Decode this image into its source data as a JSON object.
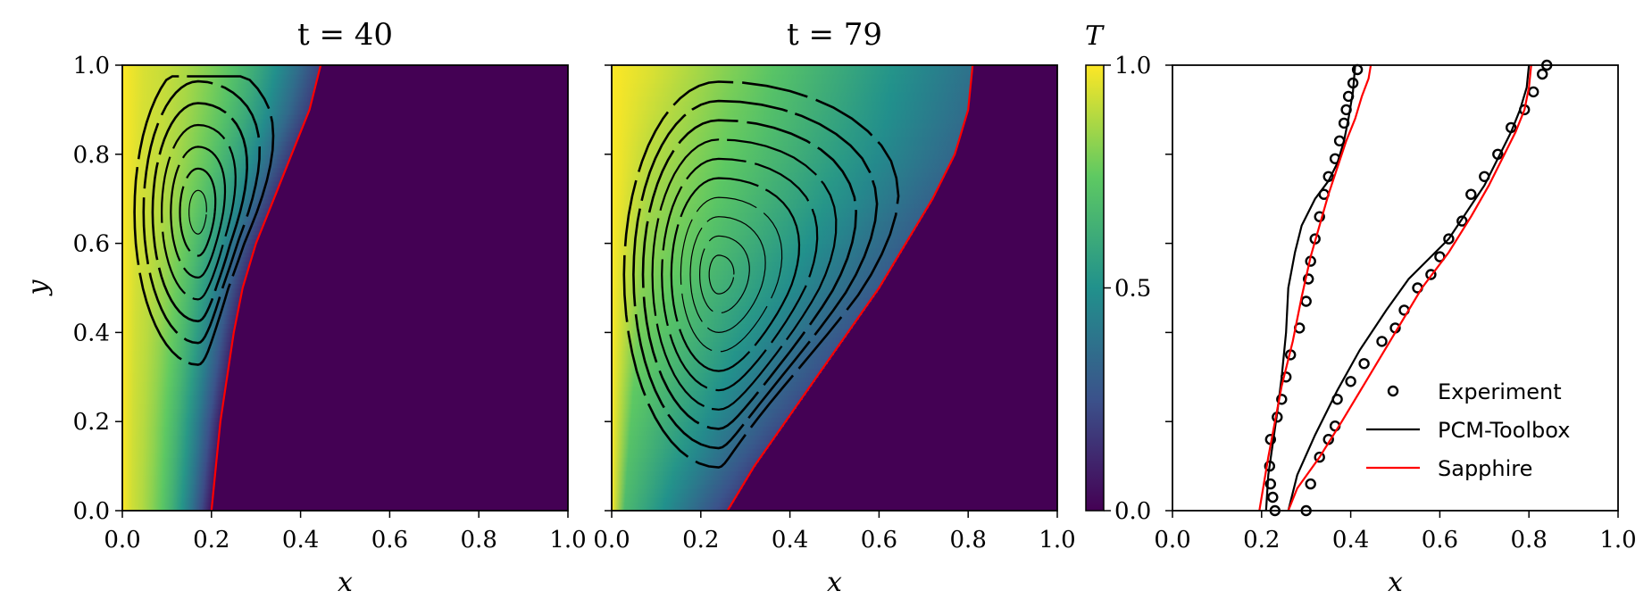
{
  "chart_data": [
    {
      "type": "heatmap",
      "title": "t = 40",
      "xlabel": "x",
      "ylabel": "y",
      "xlim": [
        0,
        1
      ],
      "ylim": [
        0,
        1
      ],
      "x_ticks": [
        "0.0",
        "0.2",
        "0.4",
        "0.6",
        "0.8",
        "1.0"
      ],
      "y_ticks": [
        "0.0",
        "0.2",
        "0.4",
        "0.6",
        "0.8",
        "1.0"
      ],
      "colormap": "viridis",
      "field": "T",
      "melt_front": {
        "y": [
          0.0,
          0.1,
          0.2,
          0.3,
          0.4,
          0.5,
          0.6,
          0.7,
          0.8,
          0.9,
          1.0
        ],
        "x": [
          0.2,
          0.21,
          0.22,
          0.235,
          0.25,
          0.27,
          0.3,
          0.34,
          0.38,
          0.42,
          0.445
        ]
      },
      "vortex_center": [
        0.17,
        0.67
      ]
    },
    {
      "type": "heatmap",
      "title": "t = 79",
      "xlabel": "x",
      "ylabel": "",
      "xlim": [
        0,
        1
      ],
      "ylim": [
        0,
        1
      ],
      "x_ticks": [
        "0.0",
        "0.2",
        "0.4",
        "0.6",
        "0.8",
        "1.0"
      ],
      "colormap": "viridis",
      "field": "T",
      "melt_front": {
        "y": [
          0.0,
          0.1,
          0.2,
          0.3,
          0.4,
          0.5,
          0.6,
          0.7,
          0.8,
          0.9,
          1.0
        ],
        "x": [
          0.26,
          0.32,
          0.39,
          0.46,
          0.53,
          0.6,
          0.66,
          0.72,
          0.77,
          0.8,
          0.81
        ]
      },
      "vortex_center": [
        0.24,
        0.53
      ],
      "colorbar": {
        "label": "T",
        "ticks": [
          "0.0",
          "0.5",
          "1.0"
        ],
        "range": [
          0,
          1
        ]
      }
    },
    {
      "type": "line",
      "xlabel": "x",
      "xlim": [
        0,
        1
      ],
      "ylim": [
        0,
        1
      ],
      "x_ticks": [
        "0.0",
        "0.2",
        "0.4",
        "0.6",
        "0.8",
        "1.0"
      ],
      "legend_position": "lower-right",
      "series": [
        {
          "name": "Experiment",
          "style": "circles",
          "color": "#000000",
          "points": [
            [
              0.23,
              0.0
            ],
            [
              0.225,
              0.03
            ],
            [
              0.22,
              0.06
            ],
            [
              0.218,
              0.1
            ],
            [
              0.22,
              0.16
            ],
            [
              0.235,
              0.21
            ],
            [
              0.245,
              0.25
            ],
            [
              0.255,
              0.3
            ],
            [
              0.265,
              0.35
            ],
            [
              0.285,
              0.41
            ],
            [
              0.3,
              0.47
            ],
            [
              0.305,
              0.52
            ],
            [
              0.31,
              0.56
            ],
            [
              0.32,
              0.61
            ],
            [
              0.33,
              0.66
            ],
            [
              0.34,
              0.71
            ],
            [
              0.35,
              0.75
            ],
            [
              0.365,
              0.79
            ],
            [
              0.375,
              0.83
            ],
            [
              0.385,
              0.87
            ],
            [
              0.39,
              0.9
            ],
            [
              0.395,
              0.93
            ],
            [
              0.405,
              0.96
            ],
            [
              0.415,
              0.99
            ],
            [
              0.3,
              0.0
            ],
            [
              0.31,
              0.06
            ],
            [
              0.33,
              0.12
            ],
            [
              0.35,
              0.16
            ],
            [
              0.365,
              0.19
            ],
            [
              0.37,
              0.25
            ],
            [
              0.4,
              0.29
            ],
            [
              0.43,
              0.33
            ],
            [
              0.47,
              0.38
            ],
            [
              0.5,
              0.41
            ],
            [
              0.52,
              0.45
            ],
            [
              0.55,
              0.5
            ],
            [
              0.58,
              0.53
            ],
            [
              0.6,
              0.57
            ],
            [
              0.62,
              0.61
            ],
            [
              0.65,
              0.65
            ],
            [
              0.67,
              0.71
            ],
            [
              0.7,
              0.75
            ],
            [
              0.73,
              0.8
            ],
            [
              0.76,
              0.86
            ],
            [
              0.79,
              0.9
            ],
            [
              0.81,
              0.94
            ],
            [
              0.83,
              0.98
            ],
            [
              0.84,
              1.0
            ]
          ]
        },
        {
          "name": "PCM-Toolbox",
          "style": "line",
          "color": "#000000",
          "curves": [
            [
              [
                0.21,
                0.0
              ],
              [
                0.215,
                0.08
              ],
              [
                0.225,
                0.15
              ],
              [
                0.235,
                0.22
              ],
              [
                0.245,
                0.3
              ],
              [
                0.255,
                0.4
              ],
              [
                0.26,
                0.5
              ],
              [
                0.275,
                0.58
              ],
              [
                0.29,
                0.64
              ],
              [
                0.32,
                0.7
              ],
              [
                0.35,
                0.74
              ],
              [
                0.37,
                0.78
              ],
              [
                0.385,
                0.83
              ],
              [
                0.395,
                0.88
              ],
              [
                0.405,
                0.94
              ],
              [
                0.41,
                1.0
              ]
            ],
            [
              [
                0.26,
                0.0
              ],
              [
                0.28,
                0.08
              ],
              [
                0.32,
                0.17
              ],
              [
                0.37,
                0.27
              ],
              [
                0.42,
                0.36
              ],
              [
                0.48,
                0.45
              ],
              [
                0.53,
                0.52
              ],
              [
                0.58,
                0.57
              ],
              [
                0.62,
                0.61
              ],
              [
                0.66,
                0.67
              ],
              [
                0.7,
                0.73
              ],
              [
                0.73,
                0.79
              ],
              [
                0.76,
                0.85
              ],
              [
                0.78,
                0.9
              ],
              [
                0.795,
                0.95
              ],
              [
                0.8,
                1.0
              ]
            ]
          ]
        },
        {
          "name": "Sapphire",
          "style": "line",
          "color": "#ff0000",
          "curves": [
            [
              [
                0.195,
                0.0
              ],
              [
                0.205,
                0.06
              ],
              [
                0.215,
                0.12
              ],
              [
                0.23,
                0.2
              ],
              [
                0.245,
                0.28
              ],
              [
                0.27,
                0.38
              ],
              [
                0.29,
                0.48
              ],
              [
                0.31,
                0.57
              ],
              [
                0.33,
                0.64
              ],
              [
                0.35,
                0.71
              ],
              [
                0.37,
                0.77
              ],
              [
                0.39,
                0.83
              ],
              [
                0.41,
                0.88
              ],
              [
                0.425,
                0.93
              ],
              [
                0.44,
                0.97
              ],
              [
                0.445,
                1.0
              ]
            ],
            [
              [
                0.26,
                0.0
              ],
              [
                0.28,
                0.05
              ],
              [
                0.33,
                0.12
              ],
              [
                0.38,
                0.2
              ],
              [
                0.44,
                0.3
              ],
              [
                0.5,
                0.4
              ],
              [
                0.56,
                0.5
              ],
              [
                0.62,
                0.58
              ],
              [
                0.67,
                0.66
              ],
              [
                0.71,
                0.73
              ],
              [
                0.74,
                0.79
              ],
              [
                0.77,
                0.85
              ],
              [
                0.79,
                0.9
              ],
              [
                0.8,
                0.95
              ],
              [
                0.805,
                1.0
              ]
            ]
          ]
        }
      ]
    }
  ]
}
